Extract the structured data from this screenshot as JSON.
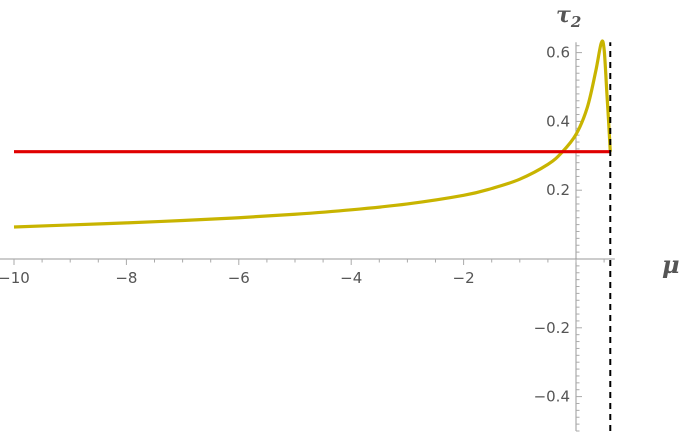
{
  "chart_data": {
    "type": "line",
    "xlabel": "μ",
    "ylabel": "τ",
    "ylabel_subscript": "2",
    "xlim": [
      -10,
      0.62
    ],
    "ylim": [
      -0.5,
      0.63
    ],
    "x_ticks": [
      -10,
      -8,
      -6,
      -4,
      -2
    ],
    "x_tick_labels": [
      "−10",
      "−8",
      "−6",
      "−4",
      "−2"
    ],
    "y_ticks": [
      -0.4,
      -0.2,
      0.2,
      0.4,
      0.6
    ],
    "y_tick_labels": [
      "−0.4",
      "−0.2",
      "0.2",
      "0.4",
      "0.6"
    ],
    "grid": false,
    "series": [
      {
        "color": "#c8b400",
        "style": "solid",
        "x": [
          -10,
          -9,
          -8,
          -7,
          -6,
          -5,
          -4,
          -3,
          -2,
          -1.5,
          -1,
          -0.5,
          -0.25,
          0,
          0.2,
          0.35,
          0.45,
          0.5,
          0.55,
          0.58,
          0.61
        ],
        "y": [
          0.093,
          0.099,
          0.105,
          0.112,
          0.12,
          0.13,
          0.143,
          0.16,
          0.185,
          0.205,
          0.232,
          0.275,
          0.31,
          0.362,
          0.44,
          0.545,
          0.628,
          0.61,
          0.48,
          0.4,
          0.312
        ]
      },
      {
        "color": "#e00000",
        "style": "solid",
        "x": [
          -10,
          0.61
        ],
        "y": [
          0.312,
          0.312
        ]
      },
      {
        "color": "#000000",
        "style": "dashed",
        "x": [
          0.61,
          0.61
        ],
        "y": [
          -0.5,
          0.63
        ]
      }
    ]
  }
}
